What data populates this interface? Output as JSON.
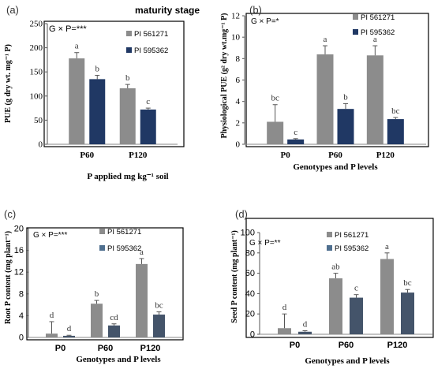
{
  "chart_data": [
    {
      "panel": "(a)",
      "type": "bar",
      "title": "maturity stage",
      "stat": "G × P=***",
      "categories": [
        "P60",
        "P120"
      ],
      "series": [
        {
          "name": "PI 561271",
          "values": [
            178,
            116
          ],
          "errors": [
            12,
            8
          ],
          "letters": [
            "a",
            "b"
          ],
          "color": "#8c8c8c"
        },
        {
          "name": "PI 595362",
          "values": [
            135,
            72
          ],
          "errors": [
            8,
            3
          ],
          "letters": [
            "b",
            "c"
          ],
          "color": "#203864"
        }
      ],
      "ylabel": "PUE (g dry wt. mg⁻¹ P)",
      "xlabel": "P applied mg kg⁻¹ soil",
      "ylim": [
        0,
        250
      ],
      "yticks": [
        "0",
        "50",
        "100",
        "150",
        "200",
        "250"
      ]
    },
    {
      "panel": "(b)",
      "type": "bar",
      "title": "",
      "stat": "G × P=*",
      "categories": [
        "P0",
        "P60",
        "P120"
      ],
      "series": [
        {
          "name": "PI 561271",
          "values": [
            2.1,
            8.4,
            8.3
          ],
          "errors": [
            1.6,
            0.8,
            0.9
          ],
          "letters": [
            "bc",
            "a",
            "a"
          ],
          "color": "#8c8c8c"
        },
        {
          "name": "PI 595362",
          "values": [
            0.45,
            3.3,
            2.35
          ],
          "errors": [
            0.08,
            0.5,
            0.15
          ],
          "letters": [
            "c",
            "b",
            "bc"
          ],
          "color": "#203864"
        }
      ],
      "ylabel": "Physiological PUE (g² dry wt.mg⁻¹ P)",
      "xlabel": "Genotypes and P levels",
      "ylim": [
        0,
        12
      ],
      "yticks": [
        "0",
        "2",
        "4",
        "6",
        "8",
        "10",
        "12"
      ]
    },
    {
      "panel": "(c)",
      "type": "bar",
      "title": "",
      "stat": "G × P=***",
      "categories": [
        "P0",
        "P60",
        "P120"
      ],
      "series": [
        {
          "name": "PI 561271",
          "values": [
            0.7,
            6.2,
            13.5
          ],
          "errors": [
            2.2,
            0.6,
            1.0
          ],
          "letters": [
            "d",
            "b",
            "a"
          ],
          "color": "#8c8c8c"
        },
        {
          "name": "PI 595362",
          "values": [
            0.3,
            2.2,
            4.2
          ],
          "errors": [
            0.1,
            0.3,
            0.5
          ],
          "letters": [
            "d",
            "cd",
            "bc"
          ],
          "color": "#44546a"
        }
      ],
      "ylabel": "Root P content (mg plant⁻¹)",
      "xlabel": "Genotypes and P levels",
      "ylim": [
        0,
        20
      ],
      "yticks": [
        "0",
        "4",
        "8",
        "12",
        "16",
        "20"
      ]
    },
    {
      "panel": "(d)",
      "type": "bar",
      "title": "",
      "stat": "G × P=**",
      "categories": [
        "P0",
        "P60",
        "P120"
      ],
      "series": [
        {
          "name": "PI 561271",
          "values": [
            6,
            55,
            74
          ],
          "errors": [
            14,
            5,
            6
          ],
          "letters": [
            "d",
            "ab",
            "a"
          ],
          "color": "#8c8c8c"
        },
        {
          "name": "PI 595362",
          "values": [
            2.5,
            36,
            41
          ],
          "errors": [
            1,
            3,
            3
          ],
          "letters": [
            "d",
            "c",
            "bc"
          ],
          "color": "#44546a"
        }
      ],
      "ylabel": "Seed P content (mg plant⁻¹)",
      "xlabel": "Genotypes and P levels",
      "ylim": [
        0,
        100
      ],
      "yticks": [
        "0",
        "20",
        "40",
        "60",
        "80",
        "100"
      ]
    }
  ]
}
